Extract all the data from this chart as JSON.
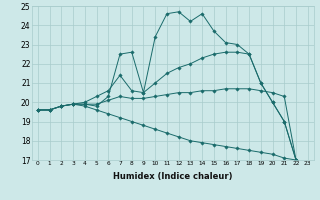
{
  "xlabel": "Humidex (Indice chaleur)",
  "bg_color": "#cde8e8",
  "grid_color": "#a8cccc",
  "line_color": "#1a6b6b",
  "xlim": [
    -0.5,
    23.5
  ],
  "ylim": [
    17,
    25
  ],
  "xticks": [
    0,
    1,
    2,
    3,
    4,
    5,
    6,
    7,
    8,
    9,
    10,
    11,
    12,
    13,
    14,
    15,
    16,
    17,
    18,
    19,
    20,
    21,
    22,
    23
  ],
  "yticks": [
    17,
    18,
    19,
    20,
    21,
    22,
    23,
    24,
    25
  ],
  "series": [
    [
      19.6,
      19.6,
      19.8,
      19.9,
      19.9,
      19.8,
      20.3,
      22.5,
      22.6,
      20.5,
      23.4,
      24.6,
      24.7,
      24.2,
      24.6,
      23.7,
      23.1,
      23.0,
      22.5,
      21.0,
      20.0,
      19.0,
      17.0
    ],
    [
      19.6,
      19.6,
      19.8,
      19.9,
      20.0,
      20.3,
      20.6,
      21.4,
      20.6,
      20.5,
      21.0,
      21.5,
      21.8,
      22.0,
      22.3,
      22.5,
      22.6,
      22.6,
      22.5,
      21.0,
      20.0,
      19.0,
      17.0
    ],
    [
      19.6,
      19.6,
      19.8,
      19.9,
      19.9,
      19.9,
      20.1,
      20.3,
      20.2,
      20.2,
      20.3,
      20.4,
      20.5,
      20.5,
      20.6,
      20.6,
      20.7,
      20.7,
      20.7,
      20.6,
      20.5,
      20.3,
      17.0
    ],
    [
      19.6,
      19.6,
      19.8,
      19.9,
      19.8,
      19.6,
      19.4,
      19.2,
      19.0,
      18.8,
      18.6,
      18.4,
      18.2,
      18.0,
      17.9,
      17.8,
      17.7,
      17.6,
      17.5,
      17.4,
      17.3,
      17.1,
      17.0
    ]
  ]
}
